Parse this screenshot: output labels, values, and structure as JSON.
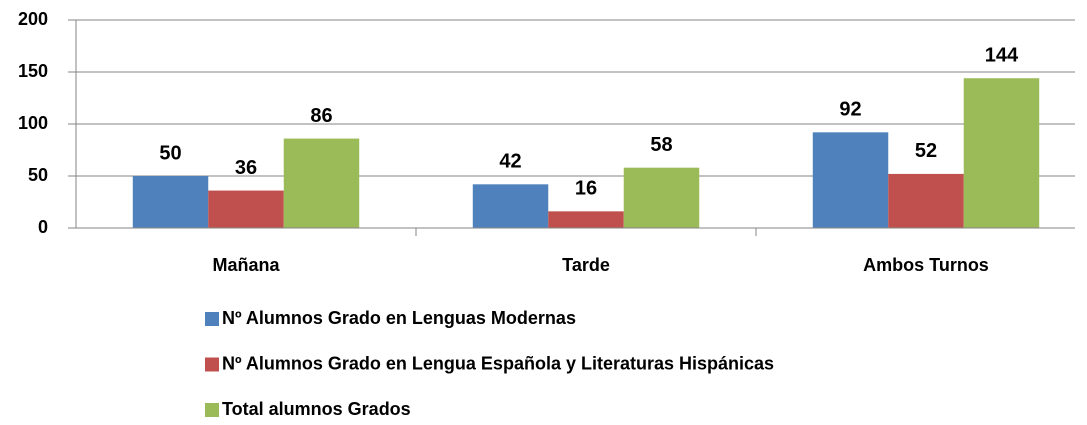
{
  "chart_data": {
    "type": "bar",
    "categories": [
      "Mañana",
      "Tarde",
      "Ambos Turnos"
    ],
    "series": [
      {
        "name": "Nº Alumnos Grado en Lenguas Modernas",
        "color": "#4f81bd",
        "values": [
          50,
          42,
          92
        ]
      },
      {
        "name": "Nº Alumnos Grado en Lengua Española y Literaturas Hispánicas",
        "color": "#c0504d",
        "values": [
          36,
          16,
          52
        ]
      },
      {
        "name": "Total alumnos Grados",
        "color": "#9bbb59",
        "values": [
          86,
          58,
          144
        ]
      }
    ],
    "ylim": [
      0,
      200
    ],
    "yticks": [
      0,
      50,
      100,
      150,
      200
    ],
    "grid": true,
    "legend": "bottom"
  }
}
